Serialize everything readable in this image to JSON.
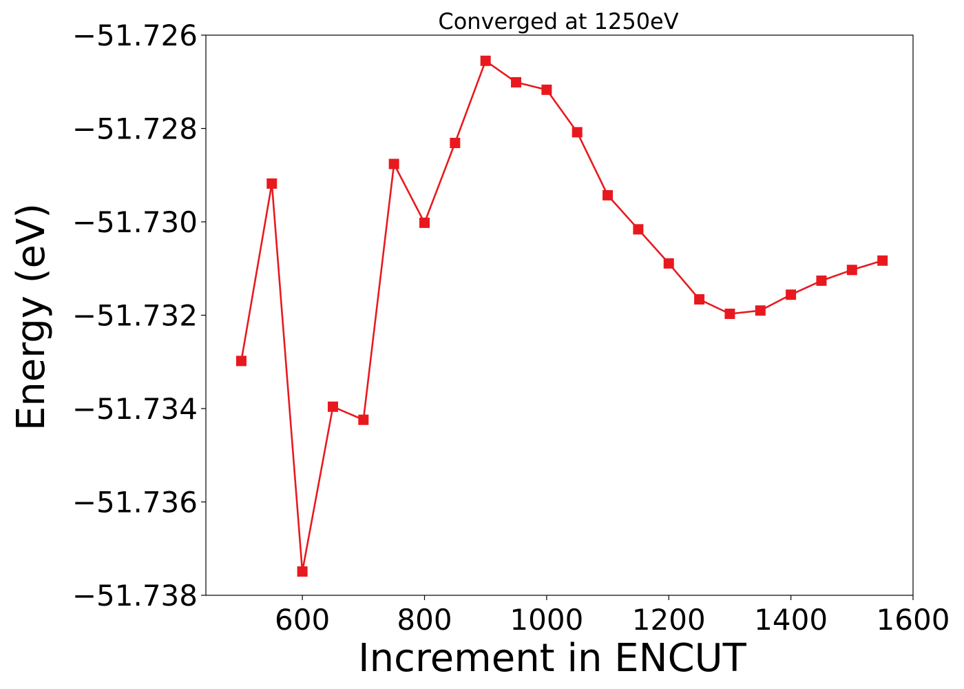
{
  "chart_data": {
    "type": "line",
    "title": "Converged at 1250eV",
    "xlabel": "Increment in ENCUT",
    "ylabel": "Energy (eV)",
    "xlim": [
      442,
      1600
    ],
    "ylim": [
      -51.738,
      -51.726
    ],
    "xticks": [
      600,
      800,
      1000,
      1200,
      1400,
      1600
    ],
    "xtick_labels": [
      "600",
      "800",
      "1000",
      "1200",
      "1400",
      "1600"
    ],
    "yticks": [
      -51.738,
      -51.736,
      -51.734,
      -51.732,
      -51.73,
      -51.728,
      -51.726
    ],
    "ytick_labels": [
      "−51.738",
      "−51.736",
      "−51.734",
      "−51.732",
      "−51.730",
      "−51.728",
      "−51.726"
    ],
    "grid": false,
    "series": [
      {
        "color": "#e8191e",
        "marker": "square",
        "x": [
          500,
          550,
          600,
          650,
          700,
          750,
          800,
          850,
          900,
          950,
          1000,
          1050,
          1100,
          1150,
          1200,
          1250,
          1300,
          1350,
          1400,
          1450,
          1500,
          1550
        ],
        "y": [
          -51.73298,
          -51.72918,
          -51.73749,
          -51.73396,
          -51.73424,
          -51.72876,
          -51.73002,
          -51.72831,
          -51.72655,
          -51.72701,
          -51.72717,
          -51.72808,
          -51.72943,
          -51.73016,
          -51.73089,
          -51.73166,
          -51.73197,
          -51.7319,
          -51.73156,
          -51.73126,
          -51.73103,
          -51.73083
        ]
      }
    ]
  }
}
